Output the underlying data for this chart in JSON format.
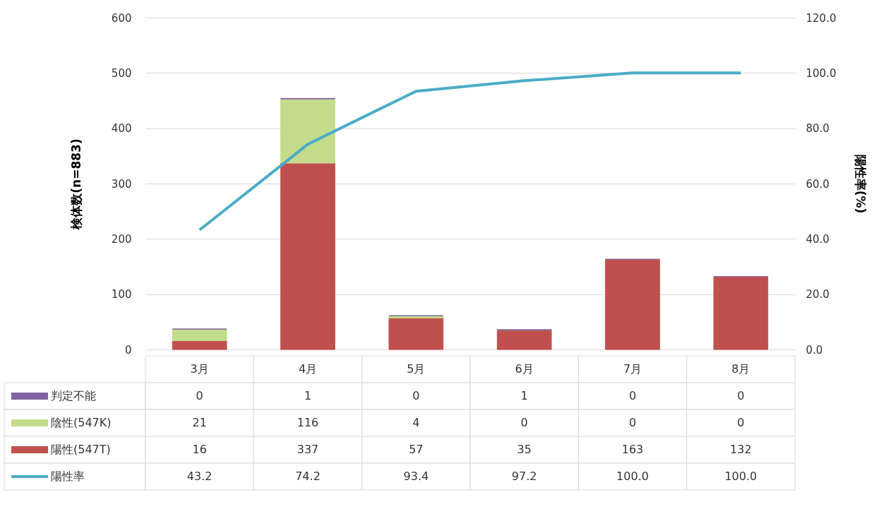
{
  "chart_data": {
    "type": "bar",
    "stacked": true,
    "categories": [
      "3月",
      "4月",
      "5月",
      "6月",
      "7月",
      "8月"
    ],
    "ylabel": "検体数(n=883)",
    "y2label": "陽性率(%)",
    "ylim": [
      0,
      600
    ],
    "yticks": [
      0,
      100,
      200,
      300,
      400,
      500,
      600
    ],
    "y2lim": [
      0,
      120
    ],
    "y2ticks": [
      {
        "value": 0,
        "label": "0.0"
      },
      {
        "value": 20,
        "label": "20.0"
      },
      {
        "value": 40,
        "label": "40.0"
      },
      {
        "value": 60,
        "label": "60.0"
      },
      {
        "value": 80,
        "label": "80.0"
      },
      {
        "value": 100,
        "label": "100.0"
      },
      {
        "value": 120,
        "label": "120.0"
      }
    ],
    "series": [
      {
        "name": "陽性(547T)",
        "color": "#c0504d",
        "values": [
          16,
          337,
          57,
          35,
          163,
          132
        ]
      },
      {
        "name": "陰性(547K)",
        "color": "#c3dc8c",
        "values": [
          21,
          116,
          4,
          0,
          0,
          0
        ]
      },
      {
        "name": "判定不能",
        "color": "#8064a2",
        "values": [
          0,
          1,
          0,
          1,
          0,
          0
        ]
      },
      {
        "name": "陽性率",
        "type": "line",
        "axis": "y2",
        "color": "#4bacc6",
        "values": [
          43.2,
          74.2,
          93.4,
          97.2,
          100.0,
          100.0
        ],
        "value_labels": [
          "43.2",
          "74.2",
          "93.4",
          "97.2",
          "100.0",
          "100.0"
        ]
      }
    ],
    "data_labels": true,
    "grid": "y",
    "legend": "bottom"
  }
}
